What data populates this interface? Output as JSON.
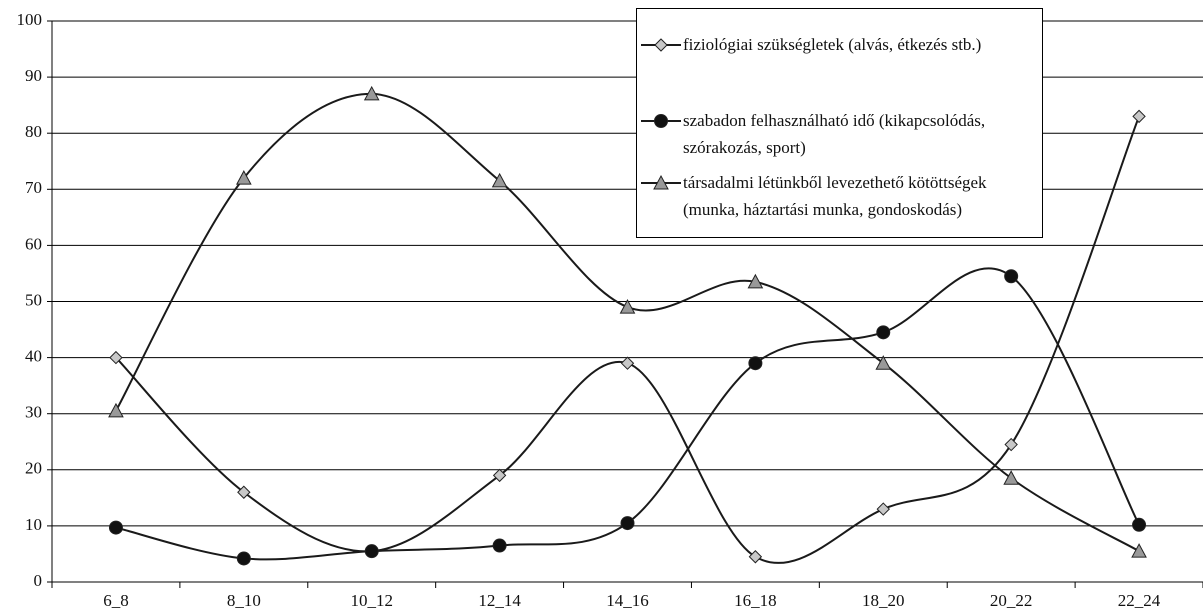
{
  "chart_data": {
    "type": "line",
    "categories": [
      "6_8",
      "8_10",
      "10_12",
      "12_14",
      "14_16",
      "16_18",
      "18_20",
      "20_22",
      "22_24"
    ],
    "series": [
      {
        "name": "fiziológiai szükségletek (alvás, étkezés stb.)",
        "color": "#c8c8c8",
        "marker": "diamond",
        "values": [
          40,
          16,
          5.5,
          19,
          39,
          4.5,
          13,
          24.5,
          83
        ]
      },
      {
        "name": "szabadon felhasználható idő (kikapcsolódás, szórakozás, sport)",
        "color": "#111111",
        "marker": "circle",
        "values": [
          9.7,
          4.2,
          5.5,
          6.5,
          10.5,
          39,
          44.5,
          54.5,
          10.2
        ]
      },
      {
        "name": "társadalmi létünkből levezethető kötöttségek (munka, háztartási munka, gondoskodás)",
        "color": "#999999",
        "marker": "triangle",
        "values": [
          30.5,
          72,
          87,
          71.5,
          49,
          53.5,
          39,
          18.5,
          5.5
        ]
      }
    ],
    "ylim": [
      0,
      100
    ],
    "yticks": [
      0,
      10,
      20,
      30,
      40,
      50,
      60,
      70,
      80,
      90,
      100
    ],
    "grid": true,
    "smooth": true
  }
}
